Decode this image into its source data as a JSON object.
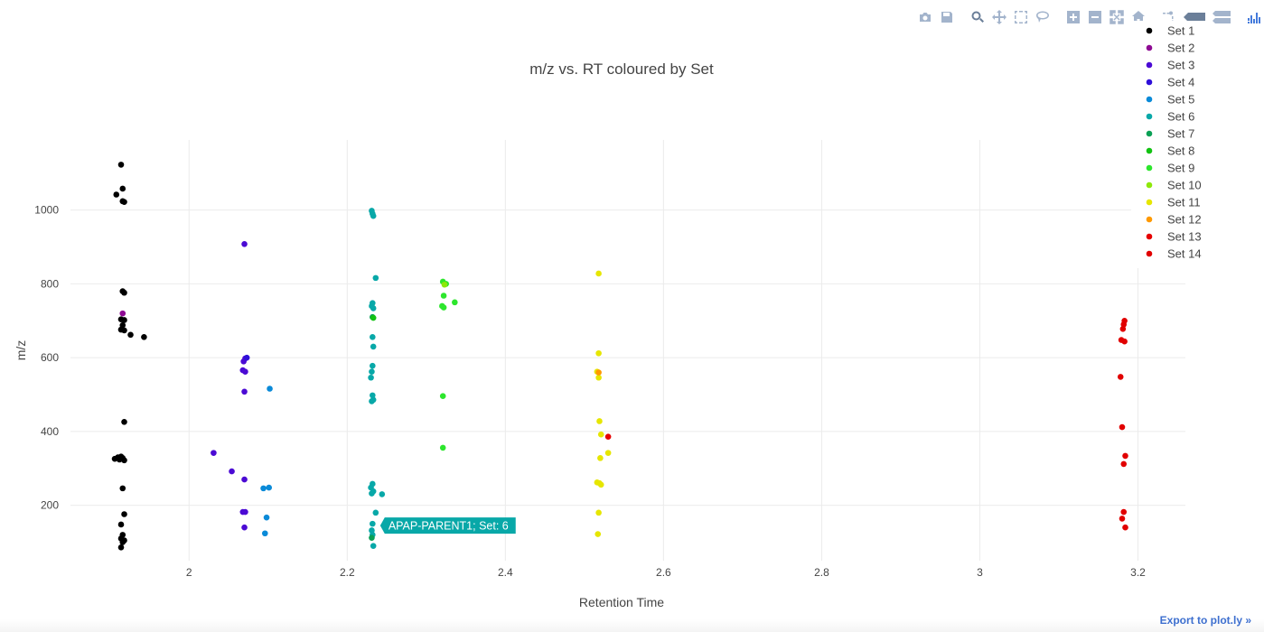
{
  "chart_data": {
    "type": "scatter",
    "title": "m/z vs. RT coloured by Set",
    "xlabel": "Retention Time",
    "ylabel": "m/z",
    "xlim": [
      1.85,
      3.26
    ],
    "ylim": [
      50,
      1190
    ],
    "xticks": [
      2,
      2.2,
      2.4,
      2.6,
      2.8,
      3,
      3.2
    ],
    "yticks": [
      200,
      400,
      600,
      800,
      1000
    ],
    "grid": true,
    "legend_position": "right",
    "series": [
      {
        "name": "Set 1",
        "color": "#000000",
        "points": [
          [
            1.914,
            1123
          ],
          [
            1.916,
            1058
          ],
          [
            1.916,
            1024
          ],
          [
            1.918,
            1022
          ],
          [
            1.908,
            1042
          ],
          [
            1.916,
            780
          ],
          [
            1.918,
            776
          ],
          [
            1.914,
            704
          ],
          [
            1.918,
            702
          ],
          [
            1.916,
            688
          ],
          [
            1.914,
            676
          ],
          [
            1.918,
            674
          ],
          [
            1.926,
            662
          ],
          [
            1.943,
            656
          ],
          [
            1.918,
            426
          ],
          [
            1.906,
            326
          ],
          [
            1.91,
            330
          ],
          [
            1.912,
            324
          ],
          [
            1.914,
            332
          ],
          [
            1.916,
            328
          ],
          [
            1.918,
            322
          ],
          [
            1.916,
            246
          ],
          [
            1.918,
            176
          ],
          [
            1.914,
            148
          ],
          [
            1.916,
            120
          ],
          [
            1.914,
            110
          ],
          [
            1.918,
            105
          ],
          [
            1.916,
            100
          ],
          [
            1.914,
            86
          ]
        ]
      },
      {
        "name": "Set 2",
        "color": "#8e0a93",
        "points": [
          [
            1.916,
            720
          ]
        ]
      },
      {
        "name": "Set 3",
        "color": "#4b0ad4",
        "points": [
          [
            2.07,
            908
          ],
          [
            2.071,
            598
          ],
          [
            2.069,
            590
          ],
          [
            2.068,
            566
          ],
          [
            2.071,
            562
          ],
          [
            2.07,
            508
          ],
          [
            2.031,
            342
          ],
          [
            2.054,
            292
          ],
          [
            2.07,
            270
          ],
          [
            2.071,
            182
          ],
          [
            2.068,
            182
          ],
          [
            2.07,
            140
          ]
        ]
      },
      {
        "name": "Set 4",
        "color": "#2e0fd9",
        "points": [
          [
            2.073,
            600
          ]
        ]
      },
      {
        "name": "Set 5",
        "color": "#0a8ad8",
        "points": [
          [
            2.102,
            516
          ],
          [
            2.094,
            246
          ],
          [
            2.101,
            248
          ],
          [
            2.098,
            167
          ],
          [
            2.096,
            124
          ]
        ]
      },
      {
        "name": "Set 6",
        "color": "#08a8a8",
        "points": [
          [
            2.231,
            998
          ],
          [
            2.232,
            990
          ],
          [
            2.233,
            984
          ],
          [
            2.236,
            816
          ],
          [
            2.232,
            748
          ],
          [
            2.231,
            740
          ],
          [
            2.233,
            734
          ],
          [
            2.232,
            656
          ],
          [
            2.233,
            630
          ],
          [
            2.232,
            578
          ],
          [
            2.231,
            562
          ],
          [
            2.23,
            546
          ],
          [
            2.232,
            498
          ],
          [
            2.233,
            486
          ],
          [
            2.231,
            482
          ],
          [
            2.232,
            258
          ],
          [
            2.23,
            248
          ],
          [
            2.233,
            238
          ],
          [
            2.231,
            232
          ],
          [
            2.244,
            230
          ],
          [
            2.236,
            180
          ],
          [
            2.232,
            150
          ],
          [
            2.231,
            132
          ],
          [
            2.232,
            120
          ],
          [
            2.233,
            90
          ]
        ]
      },
      {
        "name": "Set 7",
        "color": "#0aa055",
        "points": [
          [
            2.232,
            710
          ],
          [
            2.231,
            112
          ]
        ]
      },
      {
        "name": "Set 8",
        "color": "#12c212",
        "points": [
          [
            2.233,
            708
          ]
        ]
      },
      {
        "name": "Set 9",
        "color": "#2de62d",
        "points": [
          [
            2.321,
            806
          ],
          [
            2.325,
            800
          ],
          [
            2.322,
            768
          ],
          [
            2.32,
            740
          ],
          [
            2.322,
            736
          ],
          [
            2.336,
            750
          ],
          [
            2.321,
            496
          ],
          [
            2.321,
            356
          ]
        ]
      },
      {
        "name": "Set 10",
        "color": "#8ee80a",
        "points": [
          [
            2.323,
            798
          ]
        ]
      },
      {
        "name": "Set 11",
        "color": "#e6e600",
        "points": [
          [
            2.518,
            828
          ],
          [
            2.518,
            612
          ],
          [
            2.516,
            562
          ],
          [
            2.518,
            546
          ],
          [
            2.519,
            428
          ],
          [
            2.521,
            392
          ],
          [
            2.53,
            342
          ],
          [
            2.52,
            328
          ],
          [
            2.516,
            262
          ],
          [
            2.519,
            260
          ],
          [
            2.521,
            256
          ],
          [
            2.518,
            180
          ],
          [
            2.517,
            122
          ]
        ]
      },
      {
        "name": "Set 12",
        "color": "#ff9900",
        "points": [
          [
            2.518,
            560
          ]
        ]
      },
      {
        "name": "Set 13",
        "color": "#e60000",
        "points": [
          [
            2.53,
            386
          ]
        ]
      },
      {
        "name": "Set 14",
        "color": "#e10000",
        "points": [
          [
            3.183,
            700
          ],
          [
            3.182,
            690
          ],
          [
            3.181,
            678
          ],
          [
            3.179,
            648
          ],
          [
            3.183,
            644
          ],
          [
            3.178,
            548
          ],
          [
            3.18,
            412
          ],
          [
            3.184,
            334
          ],
          [
            3.182,
            312
          ],
          [
            3.182,
            182
          ],
          [
            3.18,
            164
          ],
          [
            3.184,
            140
          ]
        ]
      }
    ],
    "annotations": [
      {
        "text": "APAP-PARENT1; Set: 6",
        "x": 2.236,
        "y": 145,
        "color": "#08a8a8"
      }
    ]
  },
  "modebar": {
    "buttons": [
      "camera-icon",
      "save-icon",
      "zoom-icon",
      "pan-icon",
      "box-select-icon",
      "lasso-select-icon",
      "zoom-in-icon",
      "zoom-out-icon",
      "autoscale-icon",
      "reset-axes-icon",
      "spike-lines-icon",
      "hover-closest-icon",
      "hover-compare-icon",
      "plotly-logo-icon"
    ]
  },
  "footer": {
    "export_label": "Export to plot.ly »"
  }
}
